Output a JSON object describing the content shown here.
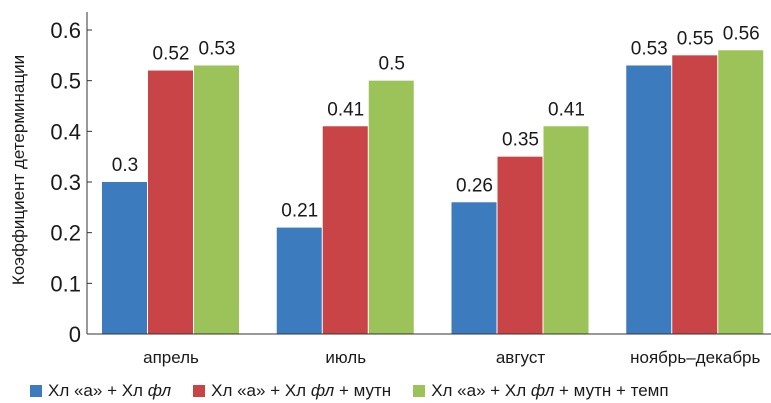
{
  "chart_data": {
    "type": "bar",
    "categories": [
      "апрель",
      "июль",
      "август",
      "ноябрь–декабрь"
    ],
    "series": [
      {
        "name": "Хл «а» + Хл фл",
        "name_prefix": "Хл «а» + Хл ",
        "name_italic": "фл",
        "name_suffix": "",
        "color": "#3d7bbf",
        "values": [
          0.3,
          0.21,
          0.26,
          0.53
        ]
      },
      {
        "name": "Хл «а» + Хл фл + мутн",
        "name_prefix": "Хл «а» + Хл ",
        "name_italic": "фл",
        "name_suffix": " + мутн",
        "color": "#c94446",
        "values": [
          0.52,
          0.41,
          0.35,
          0.55
        ]
      },
      {
        "name": "Хл «а» + Хл фл + мутн + темп",
        "name_prefix": "Хл «а» + Хл ",
        "name_italic": "фл",
        "name_suffix": " + мутн + темп",
        "color": "#9bc35a",
        "values": [
          0.53,
          0.5,
          0.41,
          0.56
        ]
      }
    ],
    "ylabel": "Коэффициент детерминации",
    "xlabel": "",
    "ylim": [
      0,
      0.6
    ],
    "yticks": [
      "0",
      "0.1",
      "0.2",
      "0.3",
      "0.4",
      "0.5",
      "0.6"
    ],
    "grid": false,
    "legend": "bottom"
  }
}
